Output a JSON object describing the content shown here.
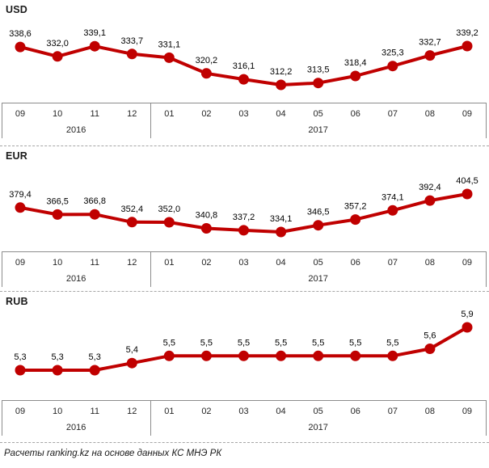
{
  "chart_data": [
    {
      "type": "line",
      "title": "USD",
      "categories": [
        "09",
        "10",
        "11",
        "12",
        "01",
        "02",
        "03",
        "04",
        "05",
        "06",
        "07",
        "08",
        "09"
      ],
      "year_groups": [
        {
          "label": "2016",
          "count": 4
        },
        {
          "label": "2017",
          "count": 9
        }
      ],
      "values": [
        338.6,
        332.0,
        339.1,
        333.7,
        331.1,
        320.2,
        316.1,
        312.2,
        313.5,
        318.4,
        325.3,
        332.7,
        339.2
      ],
      "value_labels": [
        "338,6",
        "332,0",
        "339,1",
        "333,7",
        "331,1",
        "320,2",
        "316,1",
        "312,2",
        "313,5",
        "318,4",
        "325,3",
        "332,7",
        "339,2"
      ],
      "series_color": "#c00000",
      "label_position": "above",
      "grid": false,
      "legend": "none",
      "xlabel": "",
      "ylabel": ""
    },
    {
      "type": "line",
      "title": "EUR",
      "categories": [
        "09",
        "10",
        "11",
        "12",
        "01",
        "02",
        "03",
        "04",
        "05",
        "06",
        "07",
        "08",
        "09"
      ],
      "year_groups": [
        {
          "label": "2016",
          "count": 4
        },
        {
          "label": "2017",
          "count": 9
        }
      ],
      "values": [
        379.4,
        366.5,
        366.8,
        352.4,
        352.0,
        340.8,
        337.2,
        334.1,
        346.5,
        357.2,
        374.1,
        392.4,
        404.5
      ],
      "value_labels": [
        "379,4",
        "366,5",
        "366,8",
        "352,4",
        "352,0",
        "340,8",
        "337,2",
        "334,1",
        "346,5",
        "357,2",
        "374,1",
        "392,4",
        "404,5"
      ],
      "series_color": "#c00000",
      "label_position": "above",
      "grid": false,
      "legend": "none",
      "xlabel": "",
      "ylabel": ""
    },
    {
      "type": "line",
      "title": "RUB",
      "categories": [
        "09",
        "10",
        "11",
        "12",
        "01",
        "02",
        "03",
        "04",
        "05",
        "06",
        "07",
        "08",
        "09"
      ],
      "year_groups": [
        {
          "label": "2016",
          "count": 4
        },
        {
          "label": "2017",
          "count": 9
        }
      ],
      "values": [
        5.3,
        5.3,
        5.3,
        5.4,
        5.5,
        5.5,
        5.5,
        5.5,
        5.5,
        5.5,
        5.5,
        5.6,
        5.9
      ],
      "value_labels": [
        "5,3",
        "5,3",
        "5,3",
        "5,4",
        "5,5",
        "5,5",
        "5,5",
        "5,5",
        "5,5",
        "5,5",
        "5,5",
        "5,6",
        "5,9"
      ],
      "series_color": "#c00000",
      "label_position": "above",
      "grid": false,
      "legend": "none",
      "xlabel": "",
      "ylabel": ""
    }
  ],
  "footer": {
    "text": "Расчеты ranking.kz на основе данных КС МНЭ РК"
  },
  "colors": {
    "series_line": "#c00000",
    "marker": "#c00000",
    "axis_border": "#8c8c8c",
    "separator": "#a6a6a6",
    "label_text": "#000000",
    "axis_text": "#262626"
  }
}
